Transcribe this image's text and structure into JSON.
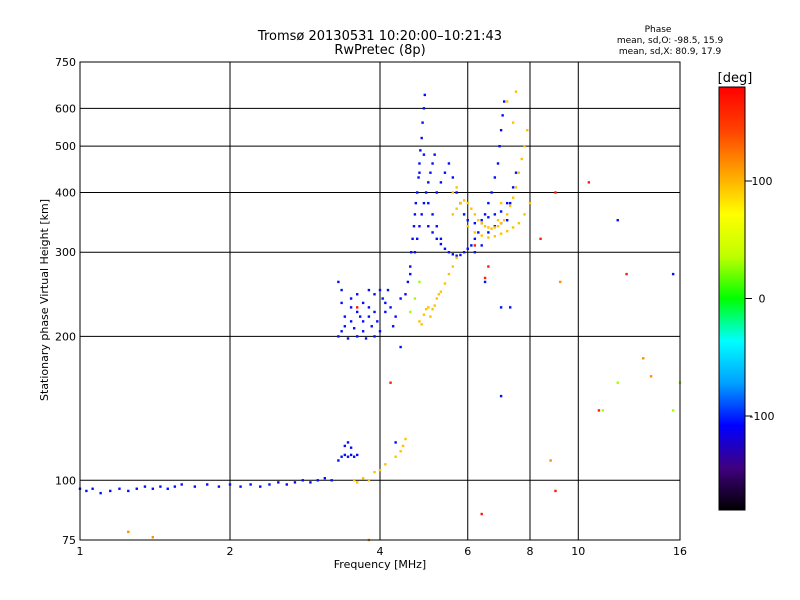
{
  "chart_data": {
    "type": "scatter",
    "title": "Tromsø 20130531 10:20:00–10:21:43",
    "subtitle": "RwPretec (8p)",
    "xlabel": "Frequency [MHz]",
    "ylabel": "Stationary phase Virtual Height [km]",
    "x_scale": "log",
    "y_scale": "log",
    "xlim": [
      1,
      16
    ],
    "ylim": [
      75,
      750
    ],
    "x_ticks": [
      1,
      2,
      4,
      6,
      8,
      10,
      16
    ],
    "x_tick_labels": [
      "1",
      "2",
      "4",
      "6",
      "8",
      "10",
      "16"
    ],
    "y_ticks": [
      75,
      100,
      200,
      300,
      400,
      500,
      600,
      750
    ],
    "y_tick_labels": [
      "75",
      "100",
      "200",
      "300",
      "400",
      "500",
      "600",
      "750"
    ],
    "grid": true,
    "stats": {
      "heading": "Phase",
      "line_o": "mean, sd,O: -98.5, 15.9",
      "line_x": "mean, sd,X: 80.9, 17.9"
    },
    "colorbar": {
      "label": "[deg]",
      "range": [
        -180,
        180
      ],
      "ticks": [
        100,
        0,
        -100
      ],
      "tick_labels": [
        "100",
        "0",
        "-100"
      ],
      "colors": [
        "#000000",
        "#400080",
        "#0000ff",
        "#00a0ff",
        "#00ffff",
        "#00ff00",
        "#c0ff00",
        "#ffff00",
        "#ffa000",
        "#ff4000",
        "#ff0000"
      ]
    },
    "series": [
      {
        "phase_deg": -105,
        "points": [
          [
            1.0,
            96
          ],
          [
            1.03,
            95
          ],
          [
            1.06,
            96
          ],
          [
            1.1,
            94
          ],
          [
            1.15,
            95
          ],
          [
            1.2,
            96
          ],
          [
            1.25,
            95
          ],
          [
            1.3,
            96
          ],
          [
            1.35,
            97
          ],
          [
            1.4,
            96
          ],
          [
            1.45,
            97
          ],
          [
            1.5,
            96
          ],
          [
            1.55,
            97
          ],
          [
            1.6,
            98
          ],
          [
            1.7,
            97
          ],
          [
            1.8,
            98
          ],
          [
            1.9,
            97
          ],
          [
            2.0,
            98
          ],
          [
            2.1,
            97
          ],
          [
            2.2,
            98
          ],
          [
            2.3,
            97
          ],
          [
            2.4,
            98
          ],
          [
            2.5,
            99
          ],
          [
            2.6,
            98
          ],
          [
            2.7,
            99
          ],
          [
            2.8,
            100
          ],
          [
            2.9,
            99
          ],
          [
            3.0,
            100
          ],
          [
            3.1,
            101
          ],
          [
            3.2,
            100
          ],
          [
            3.3,
            110
          ],
          [
            3.35,
            112
          ],
          [
            3.4,
            113
          ],
          [
            3.45,
            112
          ],
          [
            3.5,
            113
          ],
          [
            3.55,
            112
          ],
          [
            3.6,
            113
          ],
          [
            3.4,
            118
          ],
          [
            3.45,
            120
          ],
          [
            3.5,
            117
          ],
          [
            3.3,
            200
          ],
          [
            3.35,
            205
          ],
          [
            3.4,
            210
          ],
          [
            3.45,
            198
          ],
          [
            3.5,
            215
          ],
          [
            3.55,
            208
          ],
          [
            3.6,
            200
          ],
          [
            3.65,
            220
          ],
          [
            3.7,
            205
          ],
          [
            3.75,
            198
          ],
          [
            3.8,
            230
          ],
          [
            3.85,
            210
          ],
          [
            3.9,
            200
          ],
          [
            3.95,
            215
          ],
          [
            4.0,
            205
          ],
          [
            4.05,
            240
          ],
          [
            4.1,
            225
          ],
          [
            4.15,
            250
          ],
          [
            4.2,
            230
          ],
          [
            4.25,
            210
          ],
          [
            4.3,
            220
          ],
          [
            4.4,
            240
          ],
          [
            4.5,
            245
          ],
          [
            4.55,
            260
          ],
          [
            4.6,
            270
          ],
          [
            3.35,
            235
          ],
          [
            3.4,
            220
          ],
          [
            3.5,
            240
          ],
          [
            3.6,
            245
          ],
          [
            3.7,
            235
          ],
          [
            3.8,
            250
          ],
          [
            3.9,
            245
          ],
          [
            4.0,
            250
          ],
          [
            3.3,
            260
          ],
          [
            3.35,
            250
          ],
          [
            3.5,
            230
          ],
          [
            3.6,
            225
          ],
          [
            3.7,
            215
          ],
          [
            3.8,
            220
          ],
          [
            3.9,
            225
          ],
          [
            4.1,
            235
          ],
          [
            4.6,
            280
          ],
          [
            4.62,
            300
          ],
          [
            4.65,
            320
          ],
          [
            4.68,
            340
          ],
          [
            4.7,
            360
          ],
          [
            4.72,
            380
          ],
          [
            4.75,
            400
          ],
          [
            4.78,
            430
          ],
          [
            4.8,
            460
          ],
          [
            4.82,
            490
          ],
          [
            4.85,
            520
          ],
          [
            4.87,
            560
          ],
          [
            4.9,
            600
          ],
          [
            4.92,
            640
          ],
          [
            4.7,
            300
          ],
          [
            4.75,
            320
          ],
          [
            4.8,
            340
          ],
          [
            4.85,
            360
          ],
          [
            4.9,
            380
          ],
          [
            4.95,
            400
          ],
          [
            5.0,
            420
          ],
          [
            5.05,
            440
          ],
          [
            5.1,
            460
          ],
          [
            5.15,
            480
          ],
          [
            4.8,
            440
          ],
          [
            4.9,
            480
          ],
          [
            5.0,
            380
          ],
          [
            5.1,
            360
          ],
          [
            5.2,
            340
          ],
          [
            5.3,
            320
          ],
          [
            5.0,
            340
          ],
          [
            5.1,
            330
          ],
          [
            5.2,
            320
          ],
          [
            5.3,
            312
          ],
          [
            5.4,
            305
          ],
          [
            5.5,
            300
          ],
          [
            5.6,
            297
          ],
          [
            5.7,
            295
          ],
          [
            5.8,
            296
          ],
          [
            5.9,
            300
          ],
          [
            6.0,
            305
          ],
          [
            6.1,
            310
          ],
          [
            6.2,
            320
          ],
          [
            6.3,
            330
          ],
          [
            6.4,
            345
          ],
          [
            6.5,
            360
          ],
          [
            6.6,
            380
          ],
          [
            6.7,
            400
          ],
          [
            6.8,
            430
          ],
          [
            6.9,
            460
          ],
          [
            6.95,
            500
          ],
          [
            7.0,
            540
          ],
          [
            7.05,
            580
          ],
          [
            7.1,
            620
          ],
          [
            5.2,
            400
          ],
          [
            5.3,
            420
          ],
          [
            5.4,
            440
          ],
          [
            5.5,
            460
          ],
          [
            5.6,
            430
          ],
          [
            5.7,
            400
          ],
          [
            5.8,
            380
          ],
          [
            5.9,
            360
          ],
          [
            6.0,
            350
          ],
          [
            6.2,
            345
          ],
          [
            6.4,
            350
          ],
          [
            6.6,
            355
          ],
          [
            6.8,
            360
          ],
          [
            7.0,
            365
          ],
          [
            7.2,
            380
          ],
          [
            6.2,
            300
          ],
          [
            6.4,
            310
          ],
          [
            6.6,
            330
          ],
          [
            6.8,
            340
          ],
          [
            7.0,
            345
          ],
          [
            7.2,
            350
          ],
          [
            7.3,
            380
          ],
          [
            7.4,
            410
          ],
          [
            7.5,
            440
          ],
          [
            12.0,
            350
          ],
          [
            15.5,
            270
          ],
          [
            7.0,
            230
          ],
          [
            6.5,
            260
          ],
          [
            4.4,
            190
          ],
          [
            4.3,
            120
          ],
          [
            7.3,
            230
          ],
          [
            7.0,
            150
          ]
        ]
      },
      {
        "phase_deg": 95,
        "points": [
          [
            3.55,
            100
          ],
          [
            3.6,
            99
          ],
          [
            3.7,
            101
          ],
          [
            3.8,
            100
          ],
          [
            3.9,
            104
          ],
          [
            4.0,
            105
          ],
          [
            4.1,
            108
          ],
          [
            4.3,
            112
          ],
          [
            4.4,
            115
          ],
          [
            4.45,
            118
          ],
          [
            4.5,
            122
          ],
          [
            4.8,
            215
          ],
          [
            4.9,
            222
          ],
          [
            5.0,
            230
          ],
          [
            5.05,
            220
          ],
          [
            5.1,
            228
          ],
          [
            5.2,
            240
          ],
          [
            5.3,
            248
          ],
          [
            5.4,
            258
          ],
          [
            5.5,
            270
          ],
          [
            5.6,
            280
          ],
          [
            5.7,
            292
          ],
          [
            4.95,
            228
          ],
          [
            4.85,
            212
          ],
          [
            5.15,
            232
          ],
          [
            5.25,
            245
          ],
          [
            5.6,
            360
          ],
          [
            5.7,
            370
          ],
          [
            5.8,
            380
          ],
          [
            5.9,
            385
          ],
          [
            6.0,
            380
          ],
          [
            6.1,
            370
          ],
          [
            6.2,
            360
          ],
          [
            6.3,
            350
          ],
          [
            6.4,
            345
          ],
          [
            6.5,
            340
          ],
          [
            6.6,
            338
          ],
          [
            6.7,
            336
          ],
          [
            6.8,
            338
          ],
          [
            6.9,
            340
          ],
          [
            7.0,
            345
          ],
          [
            7.1,
            350
          ],
          [
            7.2,
            360
          ],
          [
            7.3,
            375
          ],
          [
            7.4,
            390
          ],
          [
            7.5,
            410
          ],
          [
            7.6,
            440
          ],
          [
            7.7,
            470
          ],
          [
            7.8,
            500
          ],
          [
            7.9,
            540
          ],
          [
            6.0,
            340
          ],
          [
            6.2,
            330
          ],
          [
            6.4,
            325
          ],
          [
            6.6,
            322
          ],
          [
            6.8,
            324
          ],
          [
            7.0,
            328
          ],
          [
            7.2,
            332
          ],
          [
            7.4,
            338
          ],
          [
            7.6,
            345
          ],
          [
            7.8,
            360
          ],
          [
            8.0,
            380
          ],
          [
            7.5,
            650
          ],
          [
            7.4,
            560
          ],
          [
            7.2,
            620
          ],
          [
            5.6,
            400
          ],
          [
            5.7,
            410
          ],
          [
            6.9,
            350
          ],
          [
            7.0,
            380
          ]
        ]
      },
      {
        "phase_deg": 165,
        "points": [
          [
            6.2,
            310
          ],
          [
            6.5,
            265
          ],
          [
            6.6,
            280
          ],
          [
            6.4,
            85
          ],
          [
            9.0,
            95
          ],
          [
            12.5,
            270
          ],
          [
            11.0,
            140
          ],
          [
            8.4,
            320
          ],
          [
            3.6,
            230
          ],
          [
            4.2,
            160
          ],
          [
            9.0,
            400
          ],
          [
            10.5,
            420
          ]
        ]
      },
      {
        "phase_deg": 30,
        "points": [
          [
            4.6,
            225
          ],
          [
            4.7,
            240
          ],
          [
            4.8,
            260
          ],
          [
            15.5,
            140
          ],
          [
            16.0,
            160
          ],
          [
            11.2,
            140
          ],
          [
            12.0,
            160
          ]
        ]
      },
      {
        "phase_deg": 115,
        "points": [
          [
            13.5,
            180
          ],
          [
            14.0,
            165
          ],
          [
            8.8,
            110
          ],
          [
            1.4,
            76
          ],
          [
            1.25,
            78
          ],
          [
            3.8,
            75
          ],
          [
            9.2,
            260
          ]
        ]
      }
    ]
  }
}
